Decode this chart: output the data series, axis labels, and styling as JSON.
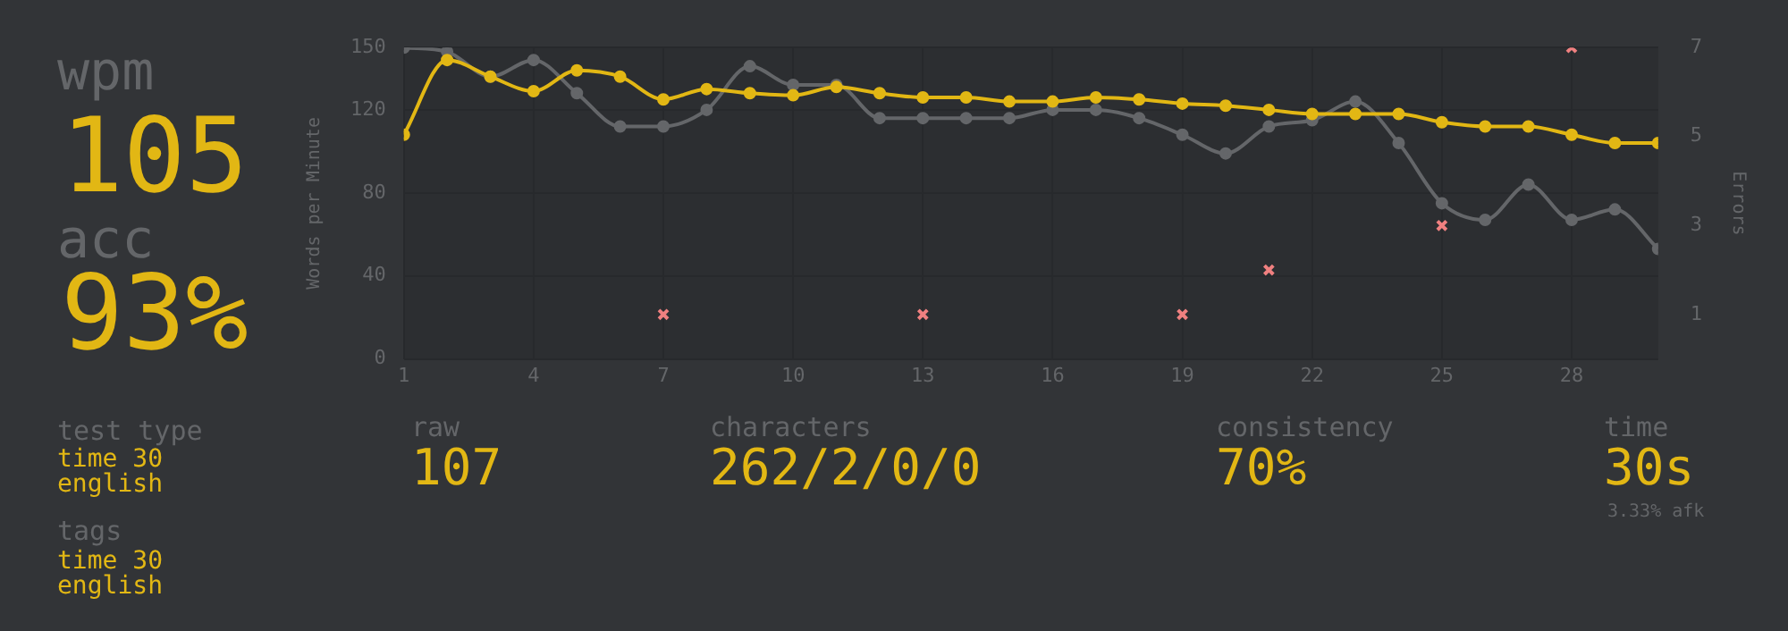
{
  "chart_data": {
    "type": "line",
    "ylabel": "Words per Minute",
    "y2label": "Errors",
    "x": [
      1,
      2,
      3,
      4,
      5,
      6,
      7,
      8,
      9,
      10,
      11,
      12,
      13,
      14,
      15,
      16,
      17,
      18,
      19,
      20,
      21,
      22,
      23,
      24,
      25,
      26,
      27,
      28,
      29,
      30
    ],
    "xlim": [
      1,
      30
    ],
    "xticks": [
      1,
      4,
      7,
      10,
      13,
      16,
      19,
      22,
      25,
      28
    ],
    "ylim": [
      0,
      150
    ],
    "yticks": [
      0,
      40,
      80,
      120,
      150
    ],
    "y2lim": [
      0,
      7
    ],
    "y2ticks": [
      1,
      3,
      5,
      7
    ],
    "grid": true,
    "legend": false,
    "series": [
      {
        "color": "#e2b714",
        "marker": "circle",
        "values": [
          108,
          144,
          136,
          129,
          139,
          136,
          125,
          130,
          128,
          127,
          131,
          128,
          126,
          126,
          124,
          124,
          126,
          125,
          123,
          122,
          120,
          118,
          118,
          118,
          114,
          112,
          112,
          108,
          104,
          104
        ]
      },
      {
        "color": "#646669",
        "marker": "circle",
        "values": [
          150,
          148,
          136,
          144,
          128,
          112,
          112,
          120,
          141,
          132,
          132,
          116,
          116,
          116,
          116,
          120,
          120,
          116,
          108,
          99,
          112,
          115,
          124,
          104,
          75,
          67,
          84,
          67,
          72,
          53
        ]
      },
      {
        "type": "scatter",
        "axis": "y2",
        "color": "#f08080",
        "marker": "cross",
        "x": [
          7,
          13,
          19,
          21,
          25,
          28
        ],
        "values": [
          1,
          1,
          1,
          2,
          3,
          7
        ]
      }
    ],
    "annotations": [
      "wpm",
      "105",
      "acc",
      "93%",
      "test type",
      "time 30",
      "english",
      "tags",
      "time 30",
      "english",
      "raw",
      "107",
      "characters",
      "262/2/0/0",
      "consistency",
      "70%",
      "time",
      "30s",
      "3.33% afk"
    ]
  }
}
